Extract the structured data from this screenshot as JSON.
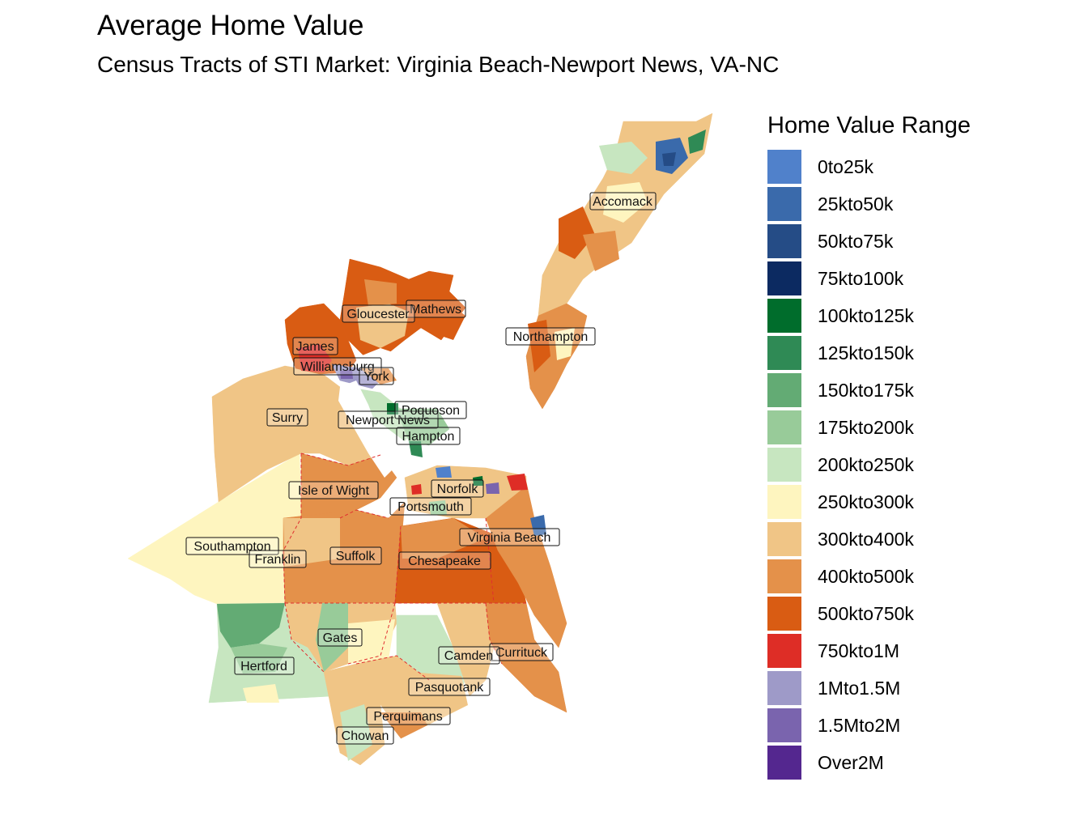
{
  "map": {
    "title": "Average Home Value",
    "subtitle": "Census Tracts of STI Market: Virginia Beach-Newport News, VA-NC",
    "legend": {
      "title": "Home Value Range",
      "items": [
        {
          "label": "0to25k",
          "color": "#5081CB"
        },
        {
          "label": "25kto50k",
          "color": "#3A6AAB"
        },
        {
          "label": "50kto75k",
          "color": "#254C86"
        },
        {
          "label": "75kto100k",
          "color": "#0C2A61"
        },
        {
          "label": "100kto125k",
          "color": "#006D2C"
        },
        {
          "label": "125kto150k",
          "color": "#2F8A55"
        },
        {
          "label": "150kto175k",
          "color": "#63AB74"
        },
        {
          "label": "175kto200k",
          "color": "#98CB99"
        },
        {
          "label": "200kto250k",
          "color": "#C7E6C0"
        },
        {
          "label": "250kto300k",
          "color": "#FEF5BF"
        },
        {
          "label": "300kto400k",
          "color": "#F0C586"
        },
        {
          "label": "400kto500k",
          "color": "#E4914A"
        },
        {
          "label": "500kto750k",
          "color": "#D95C13"
        },
        {
          "label": "750kto1M",
          "color": "#DE2D26"
        },
        {
          "label": "1Mto1.5M",
          "color": "#9E9AC8"
        },
        {
          "label": "1.5Mto2M",
          "color": "#7A64AE"
        },
        {
          "label": "Over2M",
          "color": "#54278F"
        }
      ]
    },
    "counties": [
      "Accomack",
      "Mathews",
      "Gloucester",
      "Northampton",
      "James",
      "Williamsburg",
      "York",
      "Surry",
      "Newport News",
      "Poquoson",
      "Hampton",
      "Isle of Wight",
      "Norfolk",
      "Portsmouth",
      "Virginia Beach",
      "Southampton",
      "Franklin",
      "Suffolk",
      "Chesapeake",
      "Gates",
      "Currituck",
      "Camden",
      "Hertford",
      "Pasquotank",
      "Perquimans",
      "Chowan"
    ]
  }
}
